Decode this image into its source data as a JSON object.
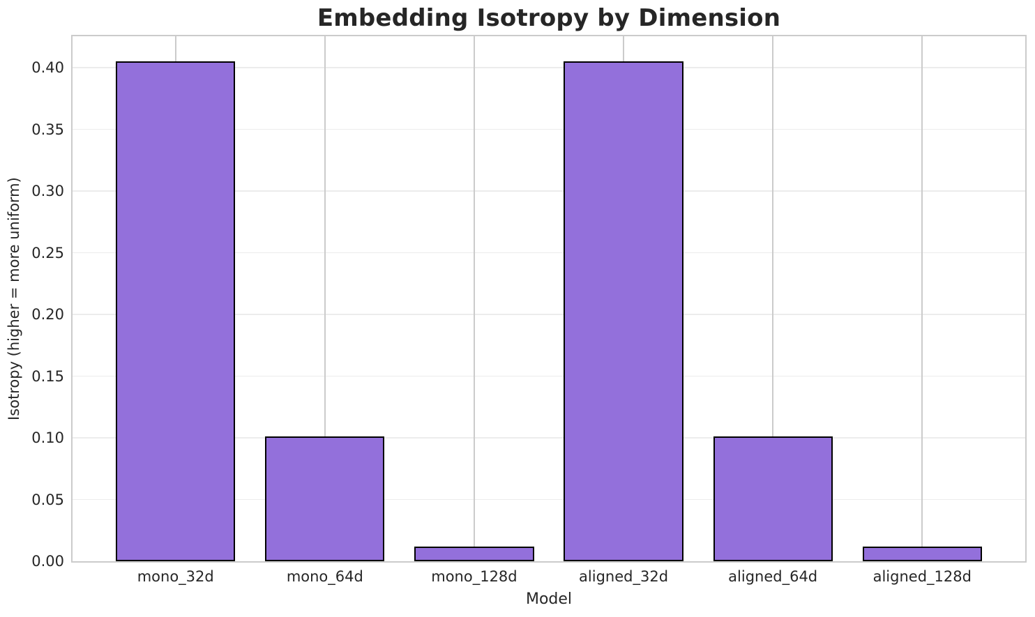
{
  "chart_data": {
    "type": "bar",
    "title": "Embedding Isotropy by Dimension",
    "xlabel": "Model",
    "ylabel": "Isotropy (higher = more uniform)",
    "categories": [
      "mono_32d",
      "mono_64d",
      "mono_128d",
      "aligned_32d",
      "aligned_64d",
      "aligned_128d"
    ],
    "values": [
      0.405,
      0.101,
      0.012,
      0.405,
      0.101,
      0.012
    ],
    "yticks": [
      0,
      0.05,
      0.1,
      0.15,
      0.2,
      0.25,
      0.3,
      0.35,
      0.4
    ],
    "ytick_labels": [
      "0.00",
      "0.05",
      "0.10",
      "0.15",
      "0.20",
      "0.25",
      "0.30",
      "0.35",
      "0.40"
    ],
    "ylim": [
      0,
      0.4255
    ],
    "xlim": [
      -0.69,
      5.69
    ],
    "bar_width_units": 0.8,
    "bar_color": "#9370db",
    "bar_edge_color": "#000000",
    "grid": true,
    "legend": false
  }
}
